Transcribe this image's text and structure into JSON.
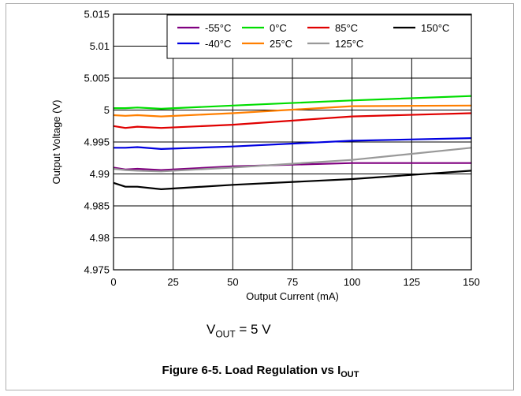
{
  "chart_data": {
    "type": "line",
    "xlabel": "Output Current (mA)",
    "ylabel": "Output Voltage (V)",
    "xlim": [
      0,
      150
    ],
    "ylim": [
      4.975,
      5.015
    ],
    "x_ticks": [
      "0",
      "25",
      "50",
      "75",
      "100",
      "125",
      "150"
    ],
    "y_ticks": [
      "4.975",
      "4.98",
      "4.985",
      "4.99",
      "4.995",
      "5",
      "5.005",
      "5.01",
      "5.015"
    ],
    "grid": true,
    "legend_position": "top-right",
    "series": [
      {
        "name": "-55°C",
        "color": "#800080",
        "x": [
          0,
          5,
          10,
          20,
          50,
          100,
          150
        ],
        "y": [
          4.991,
          4.9907,
          4.9908,
          4.9906,
          4.9912,
          4.9917,
          4.9917
        ]
      },
      {
        "name": "-40°C",
        "color": "#0000e0",
        "x": [
          0,
          5,
          10,
          20,
          50,
          100,
          150
        ],
        "y": [
          4.9941,
          4.9941,
          4.9942,
          4.9939,
          4.9943,
          4.9952,
          4.9956
        ]
      },
      {
        "name": "0°C",
        "color": "#00dd00",
        "x": [
          0,
          5,
          10,
          20,
          50,
          100,
          150
        ],
        "y": [
          5.0003,
          5.0003,
          5.0004,
          5.0002,
          5.0007,
          5.0015,
          5.0022
        ]
      },
      {
        "name": "25°C",
        "color": "#ff7f00",
        "x": [
          0,
          5,
          10,
          20,
          50,
          100,
          150
        ],
        "y": [
          4.9992,
          4.9991,
          4.9992,
          4.999,
          4.9995,
          5.0006,
          5.0007
        ]
      },
      {
        "name": "85°C",
        "color": "#e00000",
        "x": [
          0,
          5,
          10,
          20,
          50,
          100,
          150
        ],
        "y": [
          4.9975,
          4.9972,
          4.9974,
          4.9972,
          4.9977,
          4.999,
          4.9995
        ]
      },
      {
        "name": "125°C",
        "color": "#999999",
        "x": [
          0,
          5,
          10,
          20,
          50,
          100,
          150
        ],
        "y": [
          4.9908,
          4.9906,
          4.9905,
          4.9904,
          4.991,
          4.9922,
          4.9941
        ]
      },
      {
        "name": "150°C",
        "color": "#000000",
        "x": [
          0,
          5,
          10,
          20,
          50,
          100,
          150
        ],
        "y": [
          4.9886,
          4.988,
          4.988,
          4.9876,
          4.9883,
          4.9892,
          4.9905
        ]
      }
    ]
  },
  "annotation": {
    "prefix": "V",
    "sub": "OUT",
    "suffix": " = 5 V"
  },
  "caption": {
    "prefix": "Figure 6-5. Load Regulation vs I",
    "sub": "OUT"
  }
}
